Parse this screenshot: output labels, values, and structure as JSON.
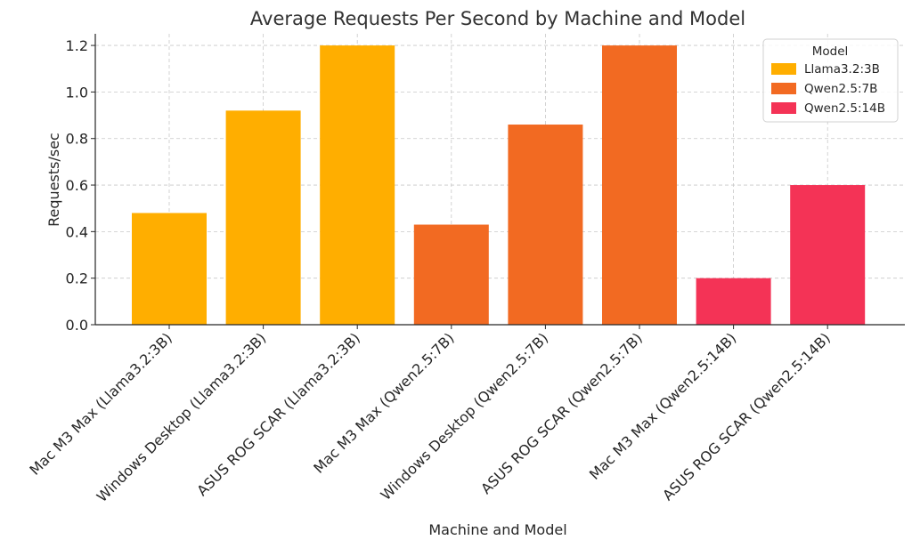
{
  "chart_data": {
    "type": "bar",
    "title": "Average Requests Per Second by Machine and Model",
    "xlabel": "Machine and Model",
    "ylabel": "Requests/sec",
    "ylim": [
      0,
      1.25
    ],
    "yticks": [
      "0.0",
      "0.2",
      "0.4",
      "0.6",
      "0.8",
      "1.0",
      "1.2"
    ],
    "grid": true,
    "legend_placement": "top-right",
    "legend_title": "Model",
    "categories": [
      "Mac M3 Max (Llama3.2:3B)",
      "Windows Desktop (Llama3.2:3B)",
      "ASUS ROG SCAR (Llama3.2:3B)",
      "Mac M3 Max (Qwen2.5:7B)",
      "Windows Desktop (Qwen2.5:7B)",
      "ASUS ROG SCAR (Qwen2.5:7B)",
      "Mac M3 Max (Qwen2.5:14B)",
      "ASUS ROG SCAR (Qwen2.5:14B)"
    ],
    "values": [
      0.48,
      0.92,
      1.2,
      0.43,
      0.86,
      1.2,
      0.2,
      0.6
    ],
    "bar_series": [
      "Llama3.2:3B",
      "Llama3.2:3B",
      "Llama3.2:3B",
      "Qwen2.5:7B",
      "Qwen2.5:7B",
      "Qwen2.5:7B",
      "Qwen2.5:14B",
      "Qwen2.5:14B"
    ],
    "series": [
      {
        "name": "Llama3.2:3B",
        "color": "#FFAE00"
      },
      {
        "name": "Qwen2.5:7B",
        "color": "#F26A22"
      },
      {
        "name": "Qwen2.5:14B",
        "color": "#F43356"
      }
    ]
  }
}
